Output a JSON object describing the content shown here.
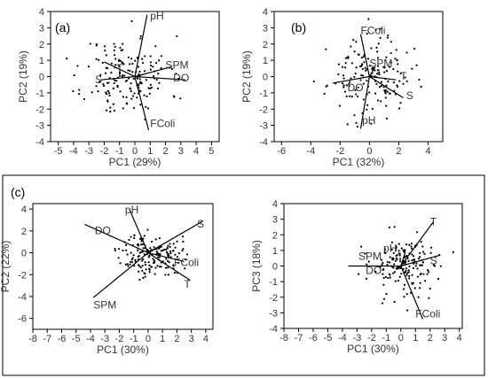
{
  "figure": {
    "group_box": true
  },
  "chart_data": [
    {
      "id": "a",
      "type": "scatter",
      "panel_label": "(a)",
      "xlabel": "PC1 (29%)",
      "ylabel": "PC2 (19%)",
      "xlim": [
        -5.5,
        5.5
      ],
      "ylim": [
        -4,
        4
      ],
      "xticks": [
        -5,
        -4,
        -3,
        -2,
        -1,
        0,
        1,
        2,
        3,
        4,
        5
      ],
      "yticks": [
        -4,
        -3,
        -2,
        -1,
        0,
        1,
        2,
        3,
        4
      ],
      "vectors": [
        {
          "name": "pH",
          "x": 0.8,
          "y": 3.8,
          "label_x": 1.0,
          "label_y": 3.5
        },
        {
          "name": "SPM",
          "x": 2.4,
          "y": 0.6,
          "label_x": 2.0,
          "label_y": 0.5
        },
        {
          "name": "DO",
          "x": 3.3,
          "y": -0.2,
          "label_x": 2.5,
          "label_y": -0.3
        },
        {
          "name": "FColi",
          "x": 0.9,
          "y": -3.3,
          "label_x": 1.0,
          "label_y": -3.1
        },
        {
          "name": "S",
          "x": -2.2,
          "y": -0.2,
          "label_x": -2.6,
          "label_y": -0.4
        },
        {
          "name": "T",
          "x": -2.0,
          "y": 0.9,
          "label_x": -1.2,
          "label_y": 0.3
        }
      ],
      "cloud": {
        "cx": -0.5,
        "cy": 0.0,
        "sx": 1.4,
        "sy": 1.25,
        "n": 170,
        "seed": 11
      }
    },
    {
      "id": "b",
      "type": "scatter",
      "panel_label": "(b)",
      "xlabel": "PC1 (32%)",
      "ylabel": "PC2 (19%)",
      "xlim": [
        -6.5,
        5
      ],
      "ylim": [
        -4,
        4
      ],
      "xticks": [
        -6,
        -4,
        -2,
        0,
        2,
        4
      ],
      "yticks": [
        -4,
        -3,
        -2,
        -1,
        0,
        1,
        2,
        3,
        4
      ],
      "vectors": [
        {
          "name": "FColi",
          "x": -0.6,
          "y": 2.6,
          "label_x": -0.6,
          "label_y": 2.6
        },
        {
          "name": "SPM",
          "x": 0.4,
          "y": 0.6,
          "label_x": 0.0,
          "label_y": 0.6
        },
        {
          "name": "T",
          "x": 1.8,
          "y": -0.2,
          "label_x": 2.1,
          "label_y": -0.2
        },
        {
          "name": "S",
          "x": 2.3,
          "y": -1.3,
          "label_x": 2.5,
          "label_y": -1.4
        },
        {
          "name": "DO",
          "x": -2.5,
          "y": -0.4,
          "label_x": -1.5,
          "label_y": -0.9
        },
        {
          "name": "pH",
          "x": -0.6,
          "y": -3.2,
          "label_x": -0.5,
          "label_y": -2.9
        }
      ],
      "cloud": {
        "cx": 0.0,
        "cy": 0.0,
        "sx": 1.4,
        "sy": 1.15,
        "n": 160,
        "seed": 23
      }
    },
    {
      "id": "c1",
      "type": "scatter",
      "panel_label": "(c)",
      "xlabel": "PC1 (30%)",
      "ylabel": "PC2 (22%)",
      "xlim": [
        -8,
        4.5
      ],
      "ylim": [
        -7,
        4.5
      ],
      "xticks": [
        -8,
        -7,
        -6,
        -5,
        -4,
        -3,
        -2,
        -1,
        0,
        1,
        2,
        3,
        4
      ],
      "yticks": [
        -6,
        -4,
        -2,
        0,
        2,
        4
      ],
      "vectors": [
        {
          "name": "pH",
          "x": -1.3,
          "y": 4.0,
          "label_x": -1.6,
          "label_y": 3.6
        },
        {
          "name": "S",
          "x": 3.8,
          "y": 2.9,
          "label_x": 3.4,
          "label_y": 2.3
        },
        {
          "name": "DO",
          "x": -4.4,
          "y": 2.6,
          "label_x": -3.7,
          "label_y": 1.7
        },
        {
          "name": "FColi",
          "x": 2.5,
          "y": -0.8,
          "label_x": 1.8,
          "label_y": -1.2
        },
        {
          "name": "T",
          "x": 2.9,
          "y": -2.5,
          "label_x": 2.5,
          "label_y": -3.2
        },
        {
          "name": "SPM",
          "x": -3.8,
          "y": -4.1,
          "label_x": -3.8,
          "label_y": -5.1
        }
      ],
      "cloud": {
        "cx": 0.2,
        "cy": -0.2,
        "sx": 1.05,
        "sy": 0.95,
        "n": 170,
        "seed": 37
      }
    },
    {
      "id": "c2",
      "type": "scatter",
      "panel_label": "",
      "xlabel": "PC1 (30%)",
      "ylabel": "PC3 (18%)",
      "xlim": [
        -8,
        4.2
      ],
      "ylim": [
        -4,
        4
      ],
      "xticks": [
        -8,
        -7,
        -6,
        -5,
        -4,
        -3,
        -2,
        -1,
        0,
        1,
        2,
        3,
        4
      ],
      "yticks": [
        -4,
        -3,
        -2,
        -1,
        0,
        1,
        2,
        3,
        4
      ],
      "vectors": [
        {
          "name": "T",
          "x": 2.2,
          "y": 2.8,
          "label_x": 2.0,
          "label_y": 2.6
        },
        {
          "name": "S",
          "x": 2.7,
          "y": 0.7,
          "label_x": 2.0,
          "label_y": 0.1
        },
        {
          "name": "pH",
          "x": 0.3,
          "y": 0.9,
          "label_x": -1.2,
          "label_y": 0.9
        },
        {
          "name": "SPM",
          "x": 0.2,
          "y": 0.4,
          "label_x": -2.9,
          "label_y": 0.4
        },
        {
          "name": "DO",
          "x": -3.6,
          "y": 0.0,
          "label_x": -2.4,
          "label_y": -0.5
        },
        {
          "name": "FColi",
          "x": 1.5,
          "y": -3.4,
          "label_x": 1.0,
          "label_y": -3.3
        }
      ],
      "cloud": {
        "cx": 0.3,
        "cy": 0.0,
        "sx": 1.2,
        "sy": 1.0,
        "n": 170,
        "seed": 53
      }
    }
  ]
}
